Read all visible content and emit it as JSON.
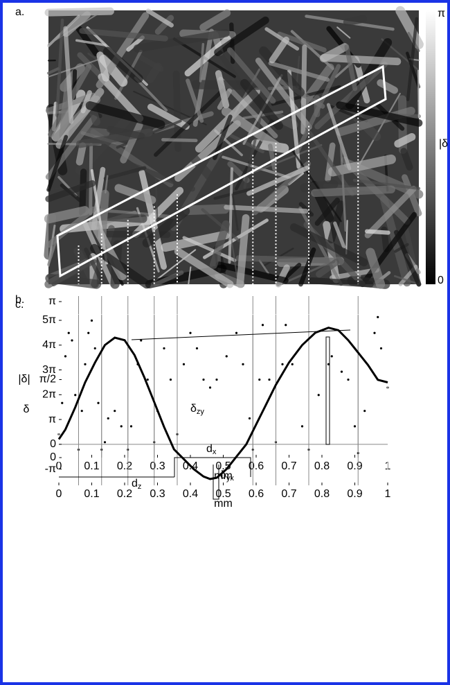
{
  "chart_data": [
    {
      "type": "image",
      "label": "a.",
      "clim": [
        0,
        3.1416
      ],
      "cticks": [
        {
          "value": 3.1416,
          "label": "π"
        },
        0
      ],
      "clabel": "|δ"
    },
    {
      "type": "scatter",
      "label": "b.",
      "xlabel": "mm",
      "ylabel": "|δ|",
      "color": "#000000",
      "x": [
        0,
        0.01,
        0.02,
        0.03,
        0.04,
        0.05,
        0.06,
        0.07,
        0.08,
        0.09,
        0.1,
        0.11,
        0.12,
        0.13,
        0.14,
        0.15,
        0.17,
        0.19,
        0.21,
        0.22,
        0.24,
        0.25,
        0.27,
        0.29,
        0.3,
        0.32,
        0.34,
        0.36,
        0.38,
        0.4,
        0.42,
        0.44,
        0.46,
        0.48,
        0.51,
        0.54,
        0.56,
        0.58,
        0.59,
        0.61,
        0.62,
        0.64,
        0.66,
        0.68,
        0.69,
        0.71,
        0.74,
        0.76,
        0.79,
        0.82,
        0.83,
        0.86,
        0.88,
        0.9,
        0.91,
        0.93,
        0.96,
        0.97,
        0.98,
        1
      ],
      "values": [
        0.47,
        1.1,
        2.04,
        2.51,
        2.36,
        1.26,
        0.16,
        0.94,
        1.88,
        2.51,
        2.76,
        2.2,
        1.1,
        0.16,
        0.31,
        0.79,
        0.94,
        0.63,
        0.16,
        0.63,
        1.88,
        2.36,
        1.57,
        0.31,
        0.94,
        2.2,
        1.57,
        0.47,
        1.88,
        2.51,
        2.2,
        1.57,
        1.41,
        1.57,
        2.04,
        2.51,
        1.88,
        0.79,
        0.16,
        1.57,
        2.67,
        1.57,
        0.31,
        1.88,
        2.67,
        1.88,
        0.63,
        0.16,
        1.26,
        1.88,
        2.04,
        1.73,
        1.57,
        0.63,
        0.09,
        0.94,
        2.51,
        2.83,
        2.2,
        1.41
      ],
      "xlim": [
        0,
        1
      ],
      "xticks": [
        0,
        0.1,
        0.2,
        0.3,
        0.4,
        0.5,
        0.6,
        0.7,
        0.8,
        0.9,
        1
      ],
      "ylim": [
        0,
        3.1416
      ],
      "yticks": [
        0,
        {
          "value": 1.5708,
          "label": "π/2"
        },
        {
          "value": 3.1416,
          "label": "π"
        }
      ],
      "vlines": [
        0.06,
        0.13,
        0.21,
        0.29,
        0.36,
        0.59,
        0.66,
        0.76,
        0.91
      ]
    },
    {
      "type": "line",
      "label": "c.",
      "xlabel": "mm",
      "ylabel": "δ",
      "color": "#000000",
      "x": [
        0,
        0.02,
        0.05,
        0.08,
        0.11,
        0.14,
        0.17,
        0.2,
        0.23,
        0.26,
        0.29,
        0.32,
        0.35,
        0.38,
        0.41,
        0.44,
        0.46,
        0.48,
        0.51,
        0.54,
        0.57,
        0.6,
        0.63,
        0.66,
        0.7,
        0.74,
        0.78,
        0.82,
        0.85,
        0.88,
        0.91,
        0.94,
        0.97,
        1
      ],
      "values": [
        0.63,
        1.88,
        4.71,
        7.85,
        10.37,
        12.57,
        13.51,
        13.19,
        11.31,
        8.48,
        5.34,
        2.2,
        -0.63,
        -1.88,
        -3.14,
        -4.08,
        -4.4,
        -4.24,
        -3.14,
        -1.57,
        0,
        2.51,
        5.03,
        7.54,
        10.37,
        12.57,
        14.14,
        14.77,
        14.45,
        13.19,
        11.62,
        10.05,
        8.17,
        7.85
      ],
      "xlim": [
        0,
        1
      ],
      "xticks": [
        0,
        0.1,
        0.2,
        0.3,
        0.4,
        0.5,
        0.6,
        0.7,
        0.8,
        0.9,
        1
      ],
      "ylim": [
        -5.2,
        15.71
      ],
      "yticks": [
        {
          "value": -3.1416,
          "label": "-π"
        },
        0,
        {
          "value": 3.1416,
          "label": "π"
        },
        {
          "value": 6.2832,
          "label": "2π"
        },
        {
          "value": 9.4248,
          "label": "3π"
        },
        {
          "value": 12.5664,
          "label": "4π"
        },
        {
          "value": 15.708,
          "label": "5π"
        }
      ],
      "vlines": [
        0.06,
        0.13,
        0.21,
        0.29,
        0.36,
        0.59,
        0.66,
        0.76,
        0.91
      ],
      "hline": 0,
      "annotations": [
        {
          "main": "δ",
          "sub": "zy"
        },
        {
          "main": "d",
          "sub": "x"
        },
        {
          "main": "δ",
          "sub": "yx"
        },
        {
          "main": "d",
          "sub": "z"
        }
      ]
    }
  ]
}
